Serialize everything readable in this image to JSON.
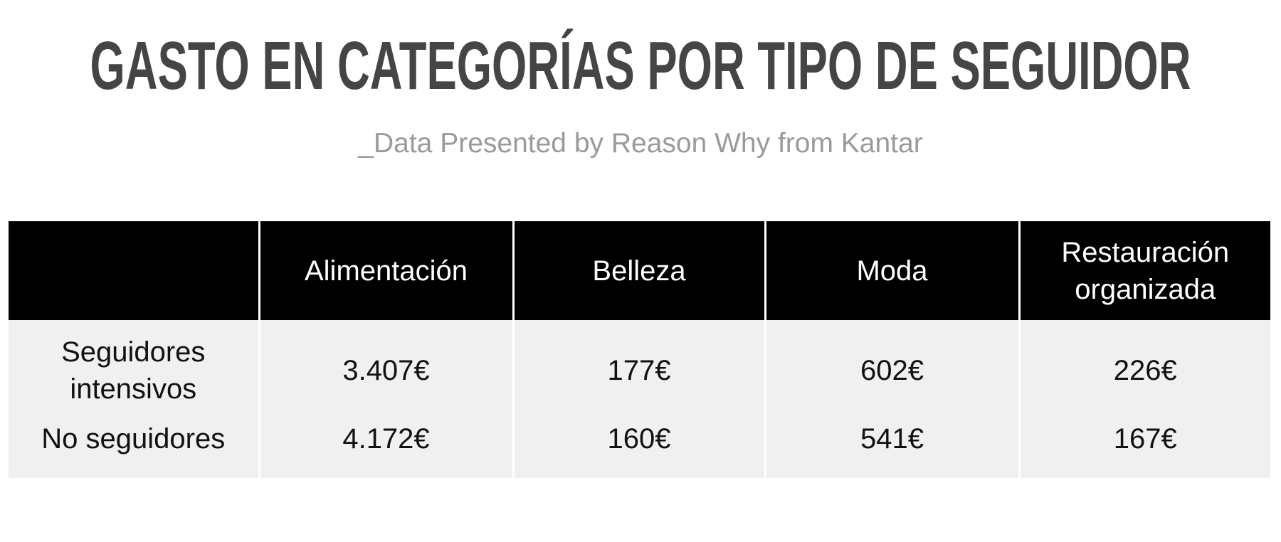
{
  "header": {
    "title": "GASTO EN CATEGORÍAS POR TIPO DE SEGUIDOR",
    "subtitle": "_Data Presented by Reason Why from Kantar"
  },
  "table": {
    "columns": [
      "Alimentación",
      "Belleza",
      "Moda",
      "Restauración organizada"
    ],
    "rows": [
      {
        "label": "Seguidores intensivos",
        "values": [
          "3.407€",
          "177€",
          "602€",
          "226€"
        ]
      },
      {
        "label": "No seguidores",
        "values": [
          "4.172€",
          "160€",
          "541€",
          "167€"
        ]
      }
    ]
  }
}
